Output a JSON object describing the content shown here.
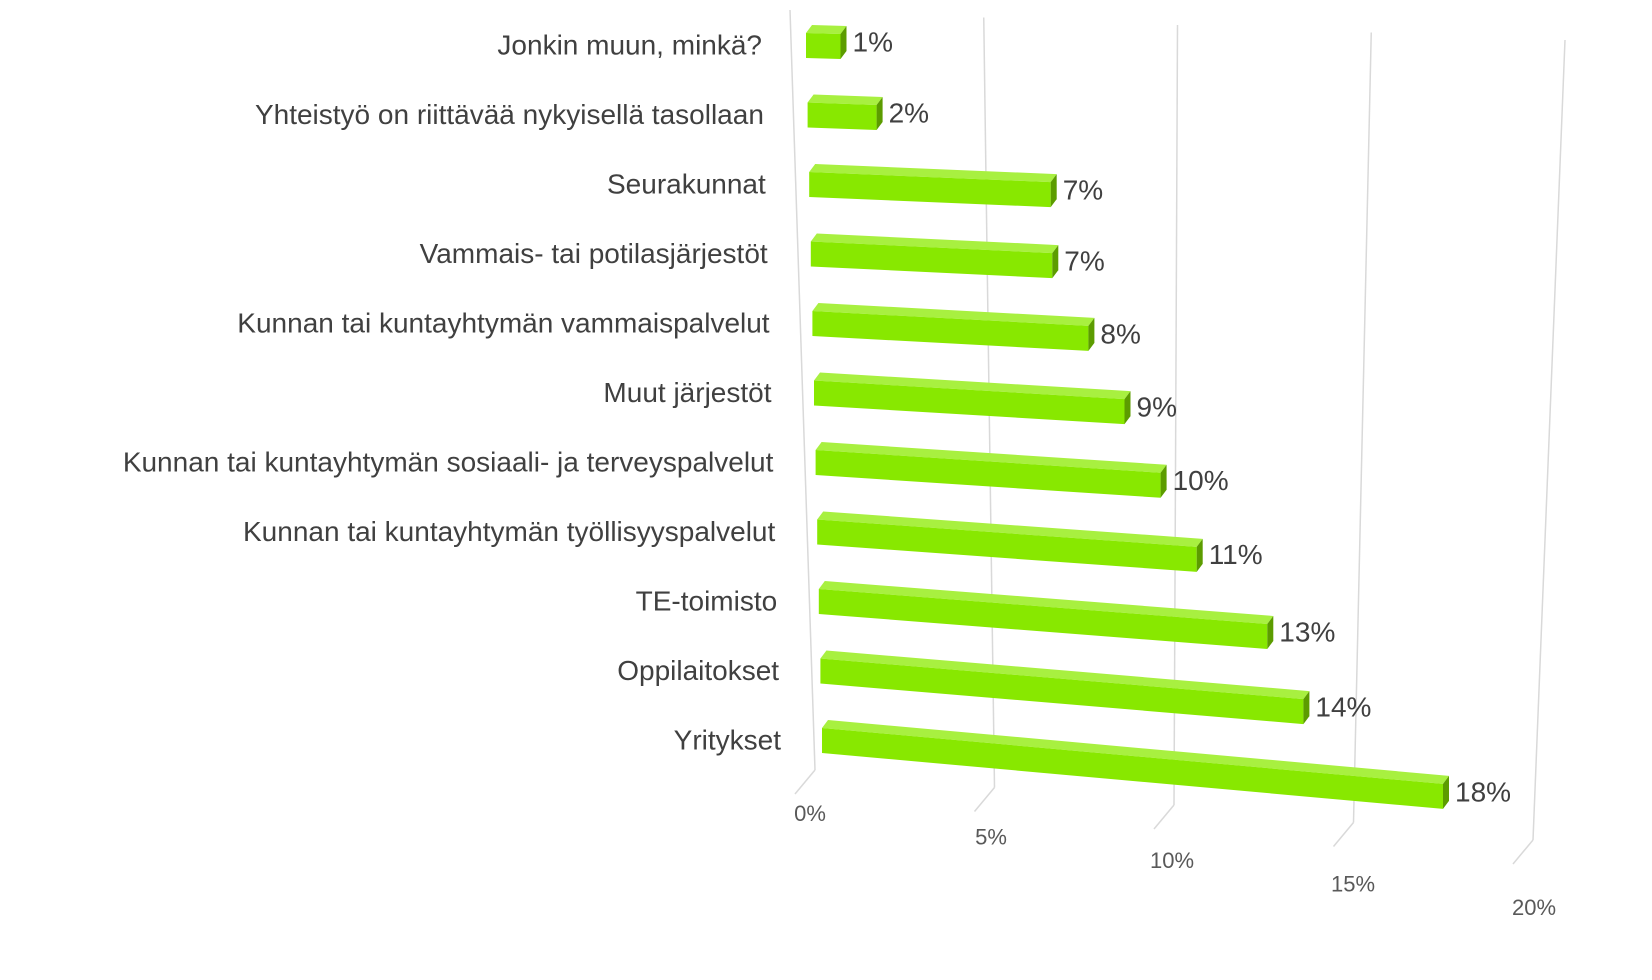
{
  "chart_data": {
    "type": "bar3d",
    "orientation": "horizontal",
    "categories": [
      "Jonkin muun, minkä?",
      "Yhteistyö on riittävää nykyisellä tasollaan",
      "Seurakunnat",
      "Vammais- tai potilasjärjestöt",
      "Kunnan tai kuntayhtymän vammaispalvelut",
      "Muut järjestöt",
      "Kunnan tai kuntayhtymän sosiaali- ja terveyspalvelut",
      "Kunnan tai kuntayhtymän työllisyyspalvelut",
      "TE-toimisto",
      "Oppilaitokset",
      "Yritykset"
    ],
    "values": [
      1,
      2,
      7,
      7,
      8,
      9,
      10,
      11,
      13,
      14,
      18
    ],
    "value_labels": [
      "1%",
      "2%",
      "7%",
      "7%",
      "8%",
      "9%",
      "10%",
      "11%",
      "13%",
      "14%",
      "18%"
    ],
    "color": "#88e800",
    "xlim": [
      0,
      20
    ],
    "xticks": [
      {
        "value": 0,
        "label": "0%"
      },
      {
        "value": 5,
        "label": "5%"
      },
      {
        "value": 10,
        "label": "10%"
      },
      {
        "value": 15,
        "label": "15%"
      },
      {
        "value": 20,
        "label": "20%"
      }
    ],
    "grid": true
  }
}
